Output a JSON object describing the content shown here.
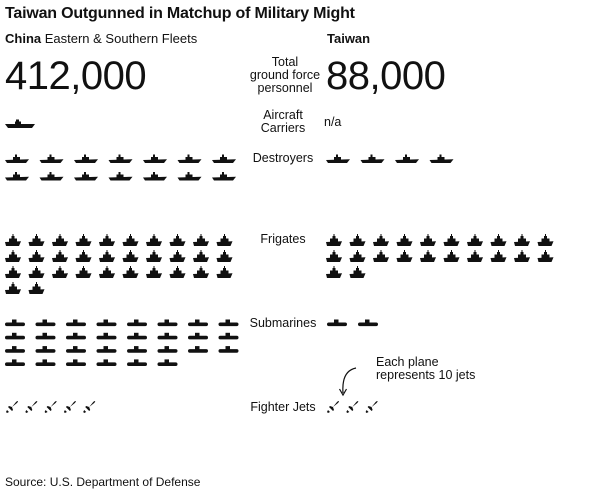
{
  "chart_data": {
    "type": "table",
    "title": "Taiwan Outgunned in Matchup of Military Might",
    "columns": [
      {
        "name_bold": "China",
        "name_rest": " Eastern & Southern Fleets"
      },
      {
        "name_bold": "Taiwan",
        "name_rest": ""
      }
    ],
    "rows": [
      {
        "label": "Total ground force personnel",
        "label_lines": [
          "Total",
          "ground force",
          "personnel"
        ],
        "china": 412000,
        "taiwan": 88000,
        "china_text": "412,000",
        "taiwan_text": "88,000"
      },
      {
        "label": "Aircraft Carriers",
        "label_lines": [
          "Aircraft",
          "Carriers"
        ],
        "china": 1,
        "taiwan": null,
        "taiwan_text": "n/a",
        "icon": "carrier-icon"
      },
      {
        "label": "Destroyers",
        "label_lines": [
          "Destroyers"
        ],
        "china": 14,
        "taiwan": 4,
        "icon": "destroyer-icon"
      },
      {
        "label": "Frigates",
        "label_lines": [
          "Frigates"
        ],
        "china": 32,
        "taiwan": 22,
        "icon": "frigate-icon"
      },
      {
        "label": "Submarines",
        "label_lines": [
          "Submarines"
        ],
        "china": 30,
        "taiwan": 2,
        "icon": "submarine-icon"
      },
      {
        "label": "Fighter Jets",
        "label_lines": [
          "Fighter Jets"
        ],
        "china": 52,
        "taiwan": 34,
        "icon": "fighter-jet-icon"
      }
    ],
    "annotation": {
      "lines": [
        "Each plane",
        "represents 10 jets"
      ],
      "jets_per_icon": 10
    },
    "source": "Source: U.S. Department of Defense"
  },
  "colors": {
    "icon": "#111111",
    "text": "#111111",
    "background": "#ffffff"
  }
}
